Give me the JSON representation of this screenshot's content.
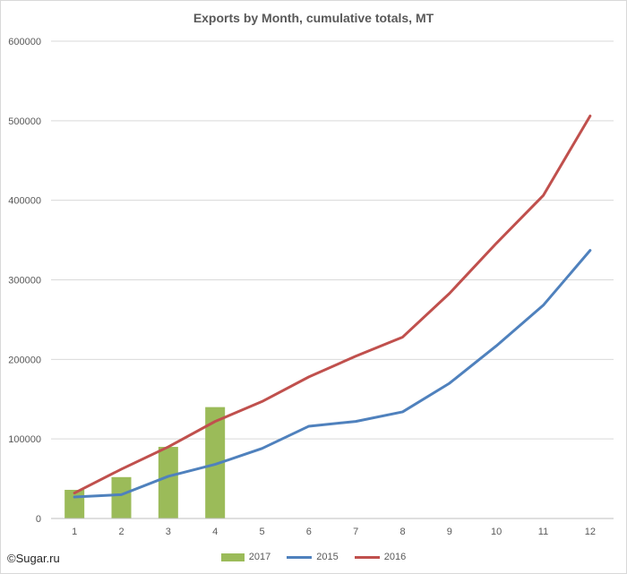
{
  "chart_data": {
    "type": "bar+line",
    "title": "Exports by Month, cumulative totals, MT",
    "categories": [
      "1",
      "2",
      "3",
      "4",
      "5",
      "6",
      "7",
      "8",
      "9",
      "10",
      "11",
      "12"
    ],
    "ylim": [
      0,
      600000
    ],
    "yticks": [
      0,
      100000,
      200000,
      300000,
      400000,
      500000,
      600000
    ],
    "grid": true,
    "legend_position": "bottom",
    "bar_series": [
      {
        "name": "2017",
        "color": "#9bbb59",
        "values": [
          36000,
          52000,
          90000,
          140000
        ]
      }
    ],
    "line_series": [
      {
        "name": "2015",
        "color": "#4f81bd",
        "values": [
          27000,
          30000,
          53000,
          68000,
          88000,
          116000,
          122000,
          134000,
          170000,
          217000,
          268000,
          337000
        ]
      },
      {
        "name": "2016",
        "color": "#c0504d",
        "values": [
          32000,
          62000,
          90000,
          122000,
          147000,
          178000,
          204000,
          228000,
          283000,
          346000,
          406000,
          506000
        ]
      }
    ]
  },
  "legend": [
    {
      "label": "2017",
      "kind": "bar",
      "color": "#9bbb59"
    },
    {
      "label": "2015",
      "kind": "line",
      "color": "#4f81bd"
    },
    {
      "label": "2016",
      "kind": "line",
      "color": "#c0504d"
    }
  ],
  "credit": "©Sugar.ru"
}
